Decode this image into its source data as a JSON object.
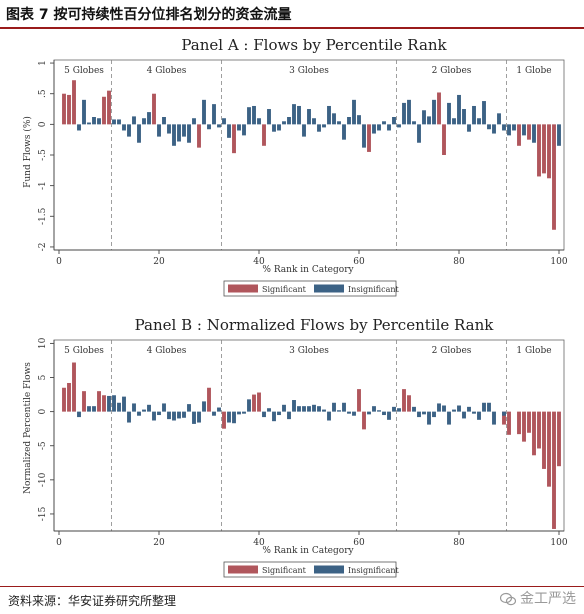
{
  "figure_title": "图表 7 按可持续性百分位排名划分的资金流量",
  "source": "资料来源：华安证券研究所整理",
  "watermark": "金工严选",
  "colors": {
    "significant": "#b0565c",
    "insignificant": "#3c6285",
    "frame": "#9a1b1b"
  },
  "chart_data": [
    {
      "type": "bar",
      "title": "Panel A : Flows by Percentile Rank",
      "xlabel": "% Rank in Category",
      "ylabel": "Fund Flows (%)",
      "xlim": [
        -1,
        101
      ],
      "ylim": [
        -2.05,
        1.05
      ],
      "x_ticks": [
        0,
        20,
        40,
        60,
        80,
        100
      ],
      "y_ticks": [
        1,
        0.5,
        0,
        -0.5,
        -1,
        -1.5,
        -2
      ],
      "y_tick_labels": [
        "1",
        ".5",
        "0",
        "-.5",
        "-1",
        "-1.5",
        "-2"
      ],
      "grid": false,
      "legend": {
        "position": "bottom-center",
        "entries": [
          "Significant",
          "Insignificant"
        ]
      },
      "group_dividers": [
        10.5,
        32.5,
        67.5,
        89.5
      ],
      "group_labels": [
        {
          "label": "5 Globes",
          "center": 5
        },
        {
          "label": "4 Globes",
          "center": 21.5
        },
        {
          "label": "3 Globes",
          "center": 50
        },
        {
          "label": "2 Globes",
          "center": 78.5
        },
        {
          "label": "1 Globe",
          "center": 95
        }
      ],
      "x": [
        1,
        2,
        3,
        4,
        5,
        6,
        7,
        8,
        9,
        10,
        11,
        12,
        13,
        14,
        15,
        16,
        17,
        18,
        19,
        20,
        21,
        22,
        23,
        24,
        25,
        26,
        27,
        28,
        29,
        30,
        31,
        32,
        33,
        34,
        35,
        36,
        37,
        38,
        39,
        40,
        41,
        42,
        43,
        44,
        45,
        46,
        47,
        48,
        49,
        50,
        51,
        52,
        53,
        54,
        55,
        56,
        57,
        58,
        59,
        60,
        61,
        62,
        63,
        64,
        65,
        66,
        67,
        68,
        69,
        70,
        71,
        72,
        73,
        74,
        75,
        76,
        77,
        78,
        79,
        80,
        81,
        82,
        83,
        84,
        85,
        86,
        87,
        88,
        89,
        90,
        91,
        92,
        93,
        94,
        95,
        96,
        97,
        98,
        99,
        100
      ],
      "series": [
        {
          "name": "Significant",
          "values": [
            0.5,
            0.48,
            0.72,
            null,
            null,
            null,
            null,
            null,
            0.45,
            0.55,
            null,
            null,
            null,
            null,
            null,
            null,
            null,
            null,
            0.5,
            null,
            null,
            null,
            null,
            null,
            null,
            null,
            null,
            -0.38,
            null,
            null,
            null,
            null,
            null,
            null,
            -0.47,
            null,
            null,
            null,
            null,
            null,
            -0.35,
            null,
            null,
            null,
            null,
            null,
            null,
            null,
            null,
            null,
            null,
            null,
            null,
            null,
            null,
            null,
            null,
            null,
            null,
            null,
            null,
            -0.45,
            null,
            null,
            null,
            null,
            null,
            null,
            null,
            null,
            null,
            null,
            null,
            null,
            null,
            0.52,
            -0.5,
            null,
            null,
            null,
            null,
            null,
            null,
            null,
            null,
            null,
            null,
            null,
            null,
            null,
            null,
            -0.35,
            null,
            -0.25,
            null,
            -0.85,
            -0.8,
            -0.88,
            -1.72,
            null
          ]
        },
        {
          "name": "Insignificant",
          "values": [
            null,
            null,
            null,
            -0.1,
            0.4,
            0.03,
            0.12,
            0.1,
            null,
            null,
            0.08,
            0.08,
            -0.1,
            -0.2,
            0.13,
            -0.3,
            0.1,
            0.2,
            null,
            -0.2,
            0.12,
            -0.15,
            -0.35,
            -0.28,
            -0.2,
            -0.3,
            0.1,
            null,
            0.4,
            -0.08,
            0.33,
            -0.05,
            0.1,
            -0.22,
            null,
            -0.1,
            -0.18,
            0.28,
            0.3,
            0.1,
            null,
            0.25,
            -0.12,
            -0.1,
            0.05,
            0.12,
            0.33,
            0.3,
            -0.2,
            0.25,
            0.1,
            -0.12,
            -0.05,
            0.3,
            0.18,
            0.05,
            -0.25,
            0.12,
            0.4,
            0.15,
            -0.38,
            null,
            -0.15,
            -0.1,
            0.05,
            -0.1,
            0.12,
            -0.05,
            0.35,
            0.4,
            0.05,
            -0.3,
            0.23,
            0.13,
            0.4,
            null,
            null,
            0.35,
            0.1,
            0.48,
            0.25,
            -0.12,
            0.3,
            0.1,
            0.38,
            -0.08,
            -0.15,
            0.18,
            -0.1,
            -0.18,
            -0.1,
            null,
            -0.18,
            null,
            -0.3,
            null,
            null,
            null,
            null,
            -0.35
          ]
        }
      ]
    },
    {
      "type": "bar",
      "title": "Panel B : Normalized Flows by  Percentile Rank",
      "xlabel": "% Rank in Category",
      "ylabel": "Normalized Percentile Flows",
      "xlim": [
        -1,
        101
      ],
      "ylim": [
        -17.5,
        10.5
      ],
      "x_ticks": [
        0,
        20,
        40,
        60,
        80,
        100
      ],
      "y_ticks": [
        10,
        5,
        0,
        -5,
        -10,
        -15
      ],
      "y_tick_labels": [
        "10",
        "5",
        "0",
        "-5",
        "-10",
        "-15"
      ],
      "grid": false,
      "legend": {
        "position": "bottom-center",
        "entries": [
          "Significant",
          "Insignificant"
        ]
      },
      "group_dividers": [
        10.5,
        32.5,
        67.5,
        89.5
      ],
      "group_labels": [
        {
          "label": "5 Globes",
          "center": 5
        },
        {
          "label": "4 Globes",
          "center": 21.5
        },
        {
          "label": "3 Globes",
          "center": 50
        },
        {
          "label": "2 Globes",
          "center": 78.5
        },
        {
          "label": "1 Globe",
          "center": 95
        }
      ],
      "x": [
        1,
        2,
        3,
        4,
        5,
        6,
        7,
        8,
        9,
        10,
        11,
        12,
        13,
        14,
        15,
        16,
        17,
        18,
        19,
        20,
        21,
        22,
        23,
        24,
        25,
        26,
        27,
        28,
        29,
        30,
        31,
        32,
        33,
        34,
        35,
        36,
        37,
        38,
        39,
        40,
        41,
        42,
        43,
        44,
        45,
        46,
        47,
        48,
        49,
        50,
        51,
        52,
        53,
        54,
        55,
        56,
        57,
        58,
        59,
        60,
        61,
        62,
        63,
        64,
        65,
        66,
        67,
        68,
        69,
        70,
        71,
        72,
        73,
        74,
        75,
        76,
        77,
        78,
        79,
        80,
        81,
        82,
        83,
        84,
        85,
        86,
        87,
        88,
        89,
        90,
        91,
        92,
        93,
        94,
        95,
        96,
        97,
        98,
        99,
        100
      ],
      "series": [
        {
          "name": "Significant",
          "values": [
            3.5,
            4.2,
            7.2,
            null,
            3,
            null,
            null,
            3,
            2.4,
            null,
            null,
            null,
            null,
            null,
            null,
            null,
            null,
            null,
            null,
            null,
            null,
            null,
            null,
            null,
            null,
            null,
            null,
            null,
            null,
            3.5,
            null,
            null,
            -2.5,
            null,
            null,
            null,
            null,
            null,
            2.5,
            2.8,
            null,
            null,
            null,
            null,
            null,
            null,
            null,
            null,
            null,
            null,
            null,
            null,
            null,
            null,
            null,
            null,
            null,
            null,
            null,
            3.3,
            -2.6,
            null,
            null,
            null,
            null,
            null,
            null,
            null,
            3.3,
            2.4,
            null,
            null,
            null,
            null,
            null,
            null,
            null,
            null,
            null,
            null,
            null,
            null,
            null,
            null,
            null,
            null,
            null,
            null,
            -1.9,
            -3.4,
            null,
            -3.3,
            -4.4,
            -3.1,
            -6.4,
            -5.4,
            -8.4,
            -11,
            -17.2,
            -8
          ]
        },
        {
          "name": "Insignificant",
          "values": [
            null,
            null,
            null,
            -0.8,
            null,
            0.8,
            0.8,
            null,
            null,
            2.3,
            2.4,
            1.3,
            2.2,
            -1.6,
            1.2,
            -0.6,
            0.3,
            1,
            -1.3,
            -0.5,
            1.2,
            -1.1,
            -1.3,
            -1,
            -0.9,
            1.1,
            -1.8,
            -1.6,
            1.5,
            null,
            -0.6,
            0.6,
            null,
            -1.6,
            -1.7,
            -0.4,
            -0.3,
            1.8,
            null,
            null,
            -0.8,
            0.5,
            -1.4,
            -0.5,
            1,
            -1.1,
            1.7,
            0.8,
            0.8,
            0.8,
            1,
            0.8,
            0.3,
            -1.3,
            1.3,
            0.2,
            1.3,
            -0.3,
            -0.6,
            null,
            null,
            -0.4,
            0.8,
            0.2,
            -0.5,
            -1.2,
            0.7,
            0.5,
            null,
            null,
            0.7,
            -0.8,
            -0.4,
            -1.9,
            -0.8,
            1.2,
            0.9,
            -1.9,
            0.3,
            0.9,
            -1,
            0.7,
            -0.3,
            -1.2,
            1.3,
            1.3,
            -1.9,
            null,
            -0.6,
            null,
            null,
            null,
            null,
            null,
            null,
            null,
            null,
            null,
            null,
            null
          ]
        }
      ]
    }
  ]
}
